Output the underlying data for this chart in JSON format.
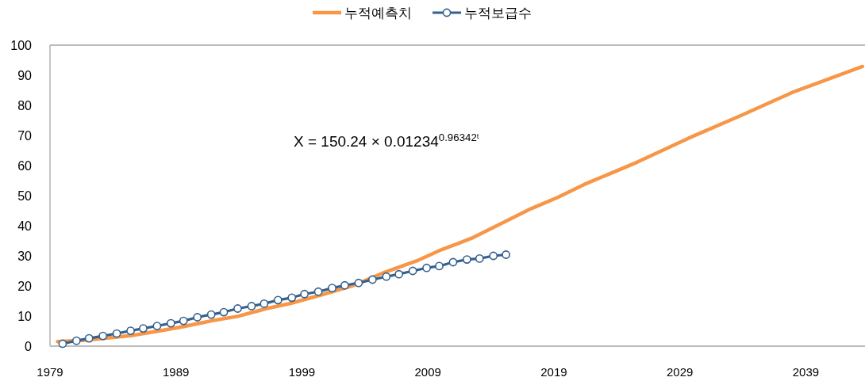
{
  "chart_data": {
    "type": "line",
    "xlim": [
      1979,
      2043.7
    ],
    "xticks": [
      1979,
      1989,
      1999,
      2009,
      2019,
      2029,
      2039
    ],
    "ylim": [
      0,
      100
    ],
    "yticks": [
      0,
      10,
      20,
      30,
      40,
      50,
      60,
      70,
      80,
      90,
      100
    ],
    "grid": false,
    "legend": "top",
    "annotations": [
      "X = 150.24 × 0.01234$^{0.96342ᵗ}$"
    ],
    "series": [
      {
        "name": "누적예측치",
        "color": "#f79646",
        "marker": "none",
        "x": [
          1979.6,
          1981.8,
          1985.4,
          1987.6,
          1989.7,
          1991.8,
          1993.9,
          1996.2,
          1998.1,
          2000.6,
          2003.1,
          2005.6,
          2008.1,
          2010.1,
          2011.4,
          2012.6,
          2015.1,
          2017.2,
          2019.3,
          2021.4,
          2025.6,
          2029.7,
          2033.9,
          2038.1,
          2043.5
        ],
        "values": [
          1.5,
          2.0,
          3.5,
          5.0,
          6.6,
          8.4,
          9.9,
          12.5,
          14.2,
          17.1,
          20.2,
          24.6,
          28.3,
          32.1,
          34.1,
          36.1,
          41.3,
          45.7,
          49.4,
          53.7,
          61.1,
          69.1,
          76.7,
          84.6,
          92.9
        ]
      },
      {
        "name": "누적보급수",
        "color": "#35608f",
        "marker": "circle",
        "x": [
          1980.0,
          1981.1,
          1982.1,
          1983.2,
          1984.3,
          1985.4,
          1986.4,
          1987.5,
          1988.6,
          1989.6,
          1990.7,
          1991.8,
          1992.8,
          1993.9,
          1995.0,
          1996.0,
          1997.1,
          1998.2,
          1999.2,
          2000.3,
          2001.4,
          2002.4,
          2003.5,
          2004.6,
          2005.7,
          2006.7,
          2007.8,
          2008.9,
          2009.9,
          2011.0,
          2012.1,
          2013.1,
          2014.2,
          2015.2
        ],
        "values": [
          0.8,
          1.8,
          2.6,
          3.4,
          4.2,
          5.1,
          5.9,
          6.7,
          7.6,
          8.4,
          9.6,
          10.5,
          11.3,
          12.5,
          13.3,
          14.1,
          15.3,
          16.1,
          17.3,
          18.1,
          19.3,
          20.2,
          21.0,
          22.1,
          23.1,
          23.9,
          25.0,
          26.0,
          26.6,
          27.9,
          28.8,
          29.1,
          30.0,
          30.4
        ]
      }
    ]
  }
}
